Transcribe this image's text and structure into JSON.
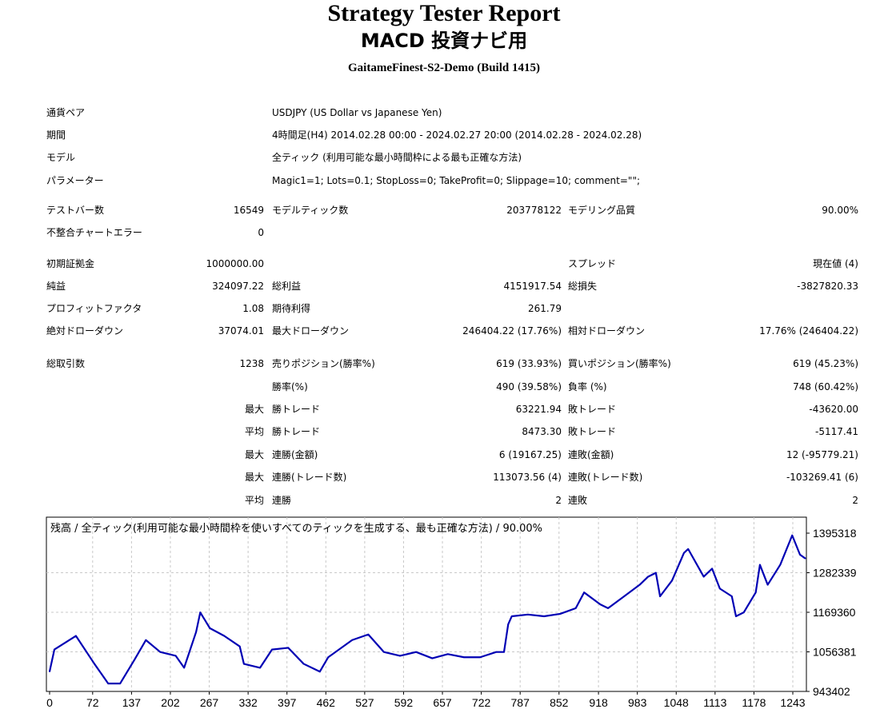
{
  "header": {
    "title": "Strategy Tester Report",
    "subtitle": "MACD 投資ナビ用",
    "server": "GaitameFinest-S2-Demo (Build 1415)"
  },
  "info": [
    {
      "label": "通貨ペア",
      "value": "USDJPY (US Dollar vs Japanese Yen)"
    },
    {
      "label": "期間",
      "value": "4時間足(H4) 2014.02.28 00:00 - 2024.02.27 20:00 (2014.02.28 - 2024.02.28)"
    },
    {
      "label": "モデル",
      "value": "全ティック (利用可能な最小時間枠による最も正確な方法)"
    },
    {
      "label": "パラメーター",
      "value": "Magic1=1; Lots=0.1; StopLoss=0; TakeProfit=0; Slippage=10; comment=\"\";"
    }
  ],
  "stats": [
    {
      "l1": "テストバー数",
      "v1": "16549",
      "l2": "モデルティック数",
      "v2": "203778122",
      "l3": "モデリング品質",
      "v3": "90.00%"
    },
    {
      "l1": "不整合チャートエラー",
      "v1": "0",
      "l2": "",
      "v2": "",
      "l3": "",
      "v3": ""
    },
    {
      "l1": "初期証拠金",
      "v1": "1000000.00",
      "l2": "",
      "v2": "",
      "l3": "スプレッド",
      "v3": "現在値 (4)"
    },
    {
      "l1": "純益",
      "v1": "324097.22",
      "l2": "総利益",
      "v2": "4151917.54",
      "l3": "総損失",
      "v3": "-3827820.33"
    },
    {
      "l1": "プロフィットファクタ",
      "v1": "1.08",
      "l2": "期待利得",
      "v2": "261.79",
      "l3": "",
      "v3": ""
    },
    {
      "l1": "絶対ドローダウン",
      "v1": "37074.01",
      "l2": "最大ドローダウン",
      "v2": "246404.22 (17.76%)",
      "l3": "相対ドローダウン",
      "v3": "17.76% (246404.22)"
    },
    {
      "l1": "総取引数",
      "v1": "1238",
      "l2": "売りポジション(勝率%)",
      "v2": "619 (33.93%)",
      "l3": "買いポジション(勝率%)",
      "v3": "619 (45.23%)"
    },
    {
      "l1": "",
      "v1": "",
      "l2": "勝率(%)",
      "v2": "490 (39.58%)",
      "l3": "負率 (%)",
      "v3": "748 (60.42%)"
    },
    {
      "l1": "",
      "v1": "最大",
      "l2": "勝トレード",
      "v2": "63221.94",
      "l3": "敗トレード",
      "v3": "-43620.00"
    },
    {
      "l1": "",
      "v1": "平均",
      "l2": "勝トレード",
      "v2": "8473.30",
      "l3": "敗トレード",
      "v3": "-5117.41"
    },
    {
      "l1": "",
      "v1": "最大",
      "l2": "連勝(金額)",
      "v2": "6 (19167.25)",
      "l3": "連敗(金額)",
      "v3": "12 (-95779.21)"
    },
    {
      "l1": "",
      "v1": "最大",
      "l2": "連勝(トレード数)",
      "v2": "113073.56 (4)",
      "l3": "連敗(トレード数)",
      "v3": "-103269.41 (6)"
    },
    {
      "l1": "",
      "v1": "平均",
      "l2": "連勝",
      "v2": "2",
      "l3": "連敗",
      "v3": "2"
    }
  ],
  "chart_data": {
    "type": "line",
    "title": "残高 / 全ティック(利用可能な最小時間枠を使いすべてのティックを生成する、最も正確な方法) / 90.00%",
    "xlabel": "",
    "ylabel": "",
    "xlim": [
      0,
      1265
    ],
    "ylim": [
      943402,
      1395318
    ],
    "xticks": [
      0,
      72,
      137,
      202,
      267,
      332,
      397,
      462,
      527,
      592,
      657,
      722,
      787,
      852,
      918,
      983,
      1048,
      1113,
      1178,
      1243
    ],
    "yticks": [
      943402,
      1056381,
      1169360,
      1282339,
      1395318
    ],
    "grid": true,
    "color": "#0000b4",
    "x": [
      0,
      8,
      44,
      75,
      98,
      118,
      142,
      161,
      185,
      211,
      225,
      245,
      252,
      268,
      292,
      318,
      325,
      352,
      372,
      399,
      425,
      452,
      466,
      506,
      533,
      559,
      586,
      613,
      640,
      666,
      693,
      720,
      747,
      760,
      767,
      773,
      800,
      827,
      854,
      880,
      894,
      921,
      934,
      961,
      987,
      1001,
      1014,
      1021,
      1041,
      1061,
      1068,
      1094,
      1108,
      1121,
      1141,
      1148,
      1161,
      1181,
      1188,
      1201,
      1222,
      1242,
      1255,
      1264
    ],
    "y": [
      1000000,
      1063000,
      1102000,
      1022000,
      966000,
      966000,
      1034000,
      1090000,
      1056000,
      1045000,
      1011000,
      1113000,
      1169000,
      1124000,
      1102000,
      1072000,
      1022000,
      1011000,
      1063000,
      1068000,
      1022000,
      1000000,
      1041000,
      1090000,
      1106000,
      1056000,
      1045000,
      1056000,
      1038000,
      1050000,
      1041000,
      1041000,
      1056000,
      1056000,
      1135000,
      1158000,
      1163000,
      1158000,
      1165000,
      1181000,
      1226000,
      1192000,
      1181000,
      1215000,
      1248000,
      1271000,
      1282000,
      1215000,
      1260000,
      1339000,
      1350000,
      1271000,
      1294000,
      1237000,
      1215000,
      1158000,
      1169000,
      1226000,
      1305000,
      1248000,
      1305000,
      1389000,
      1334000,
      1323000
    ]
  }
}
